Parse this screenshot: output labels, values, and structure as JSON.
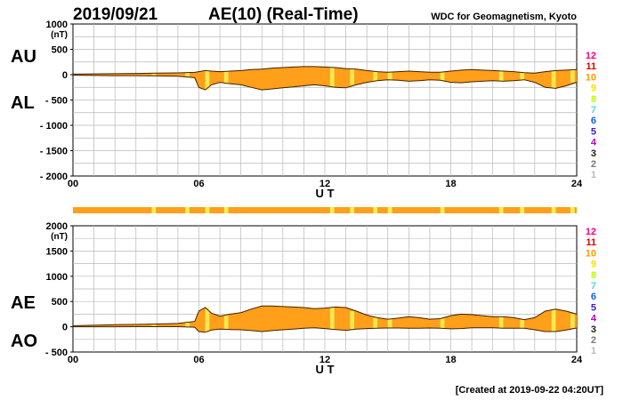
{
  "header": {
    "date": "2019/09/21",
    "title": "AE(10) (Real-Time)",
    "source": "WDC for Geomagnetism, Kyoto"
  },
  "footer": {
    "created": "[Created at 2019-09-22 04:20UT]"
  },
  "chart_data": [
    {
      "type": "area",
      "panel": "AU/AL",
      "labels_left": [
        "AU",
        "AL"
      ],
      "yunit": "(nT)",
      "ylim": [
        -2000,
        1000
      ],
      "yticks": [
        1000,
        500,
        0,
        -500,
        -1000,
        -1500,
        -2000
      ],
      "ytick_labels": [
        "1000",
        "500",
        "0",
        "- 500",
        "- 1000",
        "- 1500",
        "- 2000"
      ],
      "xlim": [
        0,
        24
      ],
      "xticks": [
        "00",
        "06",
        "12",
        "18",
        "24"
      ],
      "xlabel": "U T",
      "grid": true,
      "x": [
        0,
        1,
        2,
        3,
        4,
        5,
        5.8,
        6,
        6.3,
        6.6,
        7,
        7.5,
        8,
        8.5,
        9,
        9.5,
        10,
        10.5,
        11,
        11.5,
        12,
        12.5,
        13,
        13.5,
        14,
        14.5,
        15,
        15.5,
        16,
        16.5,
        17,
        17.5,
        18,
        18.5,
        19,
        19.5,
        20,
        20.5,
        21,
        21.5,
        22,
        22.5,
        23,
        23.5,
        24
      ],
      "series": [
        {
          "label": "AU",
          "values": [
            10,
            15,
            20,
            25,
            30,
            35,
            45,
            60,
            80,
            70,
            60,
            70,
            80,
            100,
            110,
            130,
            140,
            150,
            160,
            160,
            150,
            140,
            120,
            110,
            80,
            60,
            50,
            60,
            70,
            60,
            50,
            50,
            70,
            90,
            100,
            90,
            80,
            70,
            60,
            40,
            30,
            60,
            80,
            90,
            100
          ]
        },
        {
          "label": "AL",
          "values": [
            -10,
            -15,
            -20,
            -20,
            -25,
            -30,
            -60,
            -250,
            -300,
            -200,
            -150,
            -180,
            -200,
            -250,
            -300,
            -280,
            -260,
            -240,
            -220,
            -200,
            -220,
            -250,
            -260,
            -200,
            -150,
            -120,
            -100,
            -110,
            -130,
            -120,
            -100,
            -110,
            -150,
            -160,
            -140,
            -130,
            -120,
            -130,
            -120,
            -100,
            -150,
            -250,
            -270,
            -220,
            -150
          ]
        }
      ]
    },
    {
      "type": "area",
      "panel": "AE/AO",
      "labels_left": [
        "AE",
        "AO"
      ],
      "yunit": "(nT)",
      "ylim": [
        -500,
        2000
      ],
      "yticks": [
        2000,
        1500,
        1000,
        500,
        0,
        -500
      ],
      "ytick_labels": [
        "2000",
        "1500",
        "1000",
        "500",
        "0",
        "- 500"
      ],
      "xlim": [
        0,
        24
      ],
      "xticks": [
        "00",
        "06",
        "12",
        "18",
        "24"
      ],
      "xlabel": "U T",
      "grid": true,
      "x": [
        0,
        1,
        2,
        3,
        4,
        5,
        5.8,
        6,
        6.3,
        6.6,
        7,
        7.5,
        8,
        8.5,
        9,
        9.5,
        10,
        10.5,
        11,
        11.5,
        12,
        12.5,
        13,
        13.5,
        14,
        14.5,
        15,
        15.5,
        16,
        16.5,
        17,
        17.5,
        18,
        18.5,
        19,
        19.5,
        20,
        20.5,
        21,
        21.5,
        22,
        22.5,
        23,
        23.5,
        24
      ],
      "series": [
        {
          "label": "AE",
          "values": [
            20,
            30,
            40,
            45,
            55,
            65,
            105,
            310,
            380,
            270,
            210,
            250,
            280,
            350,
            410,
            410,
            400,
            390,
            380,
            360,
            370,
            390,
            380,
            310,
            230,
            180,
            150,
            170,
            200,
            180,
            150,
            160,
            220,
            250,
            240,
            220,
            200,
            200,
            180,
            140,
            180,
            310,
            350,
            310,
            250
          ]
        },
        {
          "label": "AO",
          "values": [
            0,
            0,
            0,
            2,
            2,
            2,
            -8,
            -95,
            -110,
            -65,
            -45,
            -55,
            -60,
            -75,
            -95,
            -75,
            -60,
            -45,
            -30,
            -20,
            -35,
            -55,
            -70,
            -45,
            -35,
            -30,
            -25,
            -25,
            -30,
            -30,
            -25,
            -30,
            -40,
            -35,
            -20,
            -20,
            -20,
            -30,
            -30,
            -30,
            -60,
            -95,
            -95,
            -65,
            -25
          ]
        }
      ]
    }
  ],
  "quality_strip": {
    "yellow_segments_hours": [
      [
        3.75,
        3.95
      ],
      [
        5.35,
        5.55
      ],
      [
        6.3,
        6.5
      ],
      [
        7.2,
        7.4
      ],
      [
        12.25,
        12.45
      ],
      [
        13.2,
        13.4
      ],
      [
        14.3,
        14.5
      ],
      [
        15.0,
        15.2
      ],
      [
        17.5,
        17.7
      ],
      [
        20.3,
        20.5
      ],
      [
        21.3,
        21.5
      ],
      [
        22.8,
        23.0
      ],
      [
        23.7,
        23.9
      ]
    ]
  },
  "level_legend": {
    "items": [
      "12",
      "11",
      "10",
      "9",
      "8",
      "7",
      "6",
      "5",
      "4",
      "3",
      "2",
      "1"
    ],
    "colors": [
      "#ff0080",
      "#e00000",
      "#ff9900",
      "#ffdd00",
      "#bbff00",
      "#44dddd",
      "#1060ff",
      "#3b22c0",
      "#c000c0",
      "#222222",
      "#777777",
      "#bbbbbb"
    ]
  },
  "colors": {
    "fill": "#ff9f1a",
    "highlight": "#ffee55",
    "outline": "#402000",
    "grid": "#b8b8b8"
  }
}
